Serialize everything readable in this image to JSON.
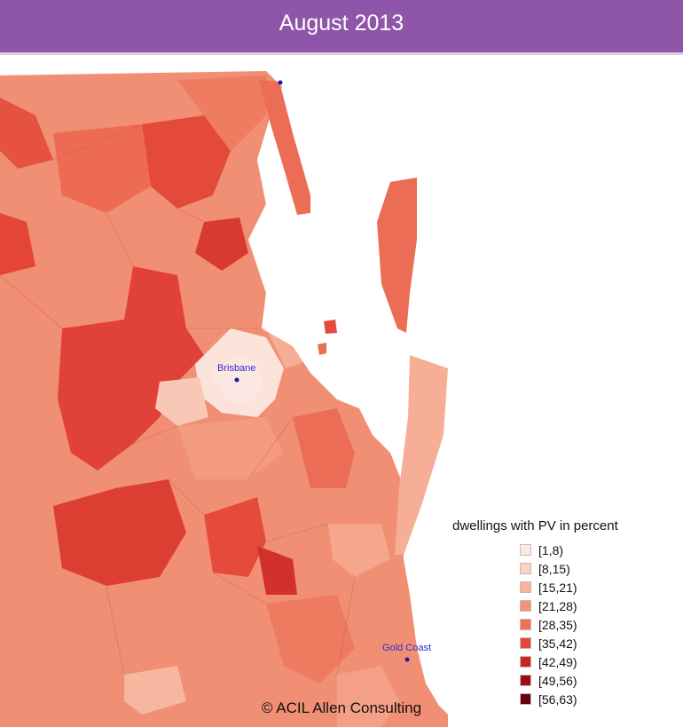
{
  "header": {
    "title": "August 2013"
  },
  "map": {
    "cities": [
      {
        "name": "Brisbane"
      },
      {
        "name": "Gold Coast"
      }
    ]
  },
  "legend": {
    "title": "dwellings with PV in percent",
    "bins": [
      {
        "label": "[1,8)",
        "color": "#fde9e3"
      },
      {
        "label": "[8,15)",
        "color": "#fbd3c4"
      },
      {
        "label": "[15,21)",
        "color": "#f7b39c"
      },
      {
        "label": "[21,28)",
        "color": "#f39277"
      },
      {
        "label": "[28,35)",
        "color": "#ee7256"
      },
      {
        "label": "[35,42)",
        "color": "#e4473a"
      },
      {
        "label": "[42,49)",
        "color": "#c8261f"
      },
      {
        "label": "[49,56)",
        "color": "#9a0d12"
      },
      {
        "label": "[56,63)",
        "color": "#67000d"
      }
    ]
  },
  "credit": "© ACIL Allen Consulting"
}
